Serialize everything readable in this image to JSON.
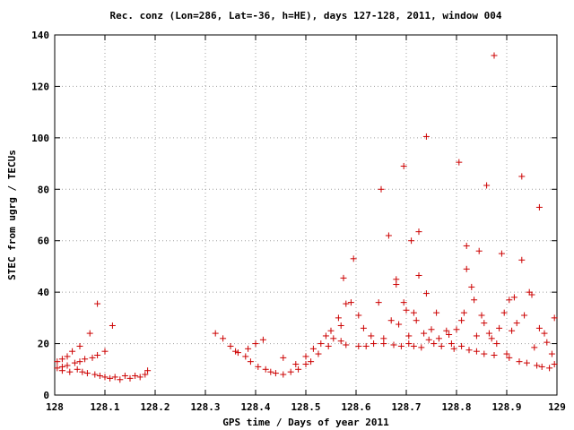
{
  "chart_data": {
    "type": "scatter",
    "title": "Rec. conz (Lon=286, Lat=-36, h=HE), days 127-128, 2011, window 004",
    "xlabel": "GPS time / Days of year 2011",
    "ylabel": "STEC from ugrg / TECUs",
    "xlim": [
      128,
      129
    ],
    "ylim": [
      0,
      140
    ],
    "xticks": [
      "128",
      "128.1",
      "128.2",
      "128.3",
      "128.4",
      "128.5",
      "128.6",
      "128.7",
      "128.8",
      "128.9",
      "129"
    ],
    "yticks": [
      "0",
      "20",
      "40",
      "60",
      "80",
      "100",
      "120",
      "140"
    ],
    "grid": true,
    "marker": "+",
    "color": "#cc0000",
    "points": [
      [
        128.005,
        13
      ],
      [
        128.005,
        10.5
      ],
      [
        128.015,
        14
      ],
      [
        128.015,
        11
      ],
      [
        128.015,
        9.5
      ],
      [
        128.025,
        15
      ],
      [
        128.025,
        11.5
      ],
      [
        128.03,
        9
      ],
      [
        128.035,
        17
      ],
      [
        128.04,
        12.5
      ],
      [
        128.045,
        10
      ],
      [
        128.05,
        19
      ],
      [
        128.05,
        13
      ],
      [
        128.055,
        9
      ],
      [
        128.06,
        14
      ],
      [
        128.065,
        8.5
      ],
      [
        128.07,
        24
      ],
      [
        128.075,
        14.5
      ],
      [
        128.08,
        8
      ],
      [
        128.085,
        35.5
      ],
      [
        128.085,
        15.5
      ],
      [
        128.09,
        7.5
      ],
      [
        128.1,
        17
      ],
      [
        128.1,
        7
      ],
      [
        128.11,
        6.5
      ],
      [
        128.115,
        27
      ],
      [
        128.12,
        7
      ],
      [
        128.13,
        6
      ],
      [
        128.14,
        7.5
      ],
      [
        128.15,
        6.5
      ],
      [
        128.16,
        7.5
      ],
      [
        128.17,
        7
      ],
      [
        128.18,
        8
      ],
      [
        128.185,
        9.5
      ],
      [
        128.32,
        24
      ],
      [
        128.335,
        22
      ],
      [
        128.35,
        19
      ],
      [
        128.36,
        17
      ],
      [
        128.365,
        16.5
      ],
      [
        128.38,
        15
      ],
      [
        128.385,
        18
      ],
      [
        128.39,
        13
      ],
      [
        128.4,
        20
      ],
      [
        128.405,
        11
      ],
      [
        128.415,
        21.5
      ],
      [
        128.42,
        10
      ],
      [
        128.43,
        9
      ],
      [
        128.44,
        8.5
      ],
      [
        128.455,
        14.5
      ],
      [
        128.455,
        8
      ],
      [
        128.47,
        9
      ],
      [
        128.48,
        12
      ],
      [
        128.485,
        10
      ],
      [
        128.5,
        15
      ],
      [
        128.5,
        12
      ],
      [
        128.51,
        13
      ],
      [
        128.515,
        18
      ],
      [
        128.525,
        16
      ],
      [
        128.53,
        20
      ],
      [
        128.54,
        23
      ],
      [
        128.545,
        19
      ],
      [
        128.55,
        25
      ],
      [
        128.555,
        22
      ],
      [
        128.565,
        30
      ],
      [
        128.57,
        27
      ],
      [
        128.57,
        21
      ],
      [
        128.575,
        45.5
      ],
      [
        128.58,
        35.5
      ],
      [
        128.58,
        19.5
      ],
      [
        128.59,
        36
      ],
      [
        128.595,
        53
      ],
      [
        128.605,
        31
      ],
      [
        128.605,
        19
      ],
      [
        128.615,
        26
      ],
      [
        128.62,
        19
      ],
      [
        128.63,
        23
      ],
      [
        128.635,
        20
      ],
      [
        128.645,
        36
      ],
      [
        128.65,
        80
      ],
      [
        128.655,
        22
      ],
      [
        128.655,
        20
      ],
      [
        128.665,
        62
      ],
      [
        128.67,
        29
      ],
      [
        128.675,
        19.5
      ],
      [
        128.68,
        45
      ],
      [
        128.68,
        43
      ],
      [
        128.685,
        27.5
      ],
      [
        128.69,
        19
      ],
      [
        128.695,
        89
      ],
      [
        128.695,
        36
      ],
      [
        128.7,
        33
      ],
      [
        128.705,
        23
      ],
      [
        128.705,
        20
      ],
      [
        128.71,
        60
      ],
      [
        128.715,
        32
      ],
      [
        128.715,
        19
      ],
      [
        128.72,
        29
      ],
      [
        128.725,
        46.5
      ],
      [
        128.725,
        63.5
      ],
      [
        128.73,
        18.5
      ],
      [
        128.735,
        24
      ],
      [
        128.74,
        100.5
      ],
      [
        128.74,
        39.5
      ],
      [
        128.745,
        21.5
      ],
      [
        128.75,
        25.5
      ],
      [
        128.755,
        20
      ],
      [
        128.76,
        32
      ],
      [
        128.765,
        22
      ],
      [
        128.77,
        19
      ],
      [
        128.78,
        25
      ],
      [
        128.785,
        23.5
      ],
      [
        128.79,
        20
      ],
      [
        128.795,
        18
      ],
      [
        128.8,
        25.5
      ],
      [
        128.805,
        90.5
      ],
      [
        128.81,
        29
      ],
      [
        128.81,
        19
      ],
      [
        128.815,
        32
      ],
      [
        128.82,
        58
      ],
      [
        128.82,
        49
      ],
      [
        128.825,
        17.5
      ],
      [
        128.83,
        42
      ],
      [
        128.835,
        37
      ],
      [
        128.84,
        23
      ],
      [
        128.84,
        17
      ],
      [
        128.845,
        56
      ],
      [
        128.85,
        31
      ],
      [
        128.855,
        28
      ],
      [
        128.855,
        16
      ],
      [
        128.86,
        81.5
      ],
      [
        128.865,
        24
      ],
      [
        128.87,
        22
      ],
      [
        128.875,
        132
      ],
      [
        128.875,
        15.5
      ],
      [
        128.88,
        20
      ],
      [
        128.885,
        26
      ],
      [
        128.89,
        55
      ],
      [
        128.895,
        32
      ],
      [
        128.9,
        16
      ],
      [
        128.905,
        37
      ],
      [
        128.905,
        14.5
      ],
      [
        128.91,
        25
      ],
      [
        128.915,
        38
      ],
      [
        128.92,
        28
      ],
      [
        128.925,
        13
      ],
      [
        128.93,
        85
      ],
      [
        128.93,
        52.5
      ],
      [
        128.935,
        31
      ],
      [
        128.94,
        12.5
      ],
      [
        128.945,
        40
      ],
      [
        128.95,
        39
      ],
      [
        128.955,
        18.5
      ],
      [
        128.96,
        11.5
      ],
      [
        128.965,
        73
      ],
      [
        128.965,
        26
      ],
      [
        128.97,
        11
      ],
      [
        128.975,
        24
      ],
      [
        128.98,
        20.5
      ],
      [
        128.985,
        10.5
      ],
      [
        128.99,
        16
      ],
      [
        128.995,
        30
      ],
      [
        128.995,
        12
      ]
    ]
  }
}
